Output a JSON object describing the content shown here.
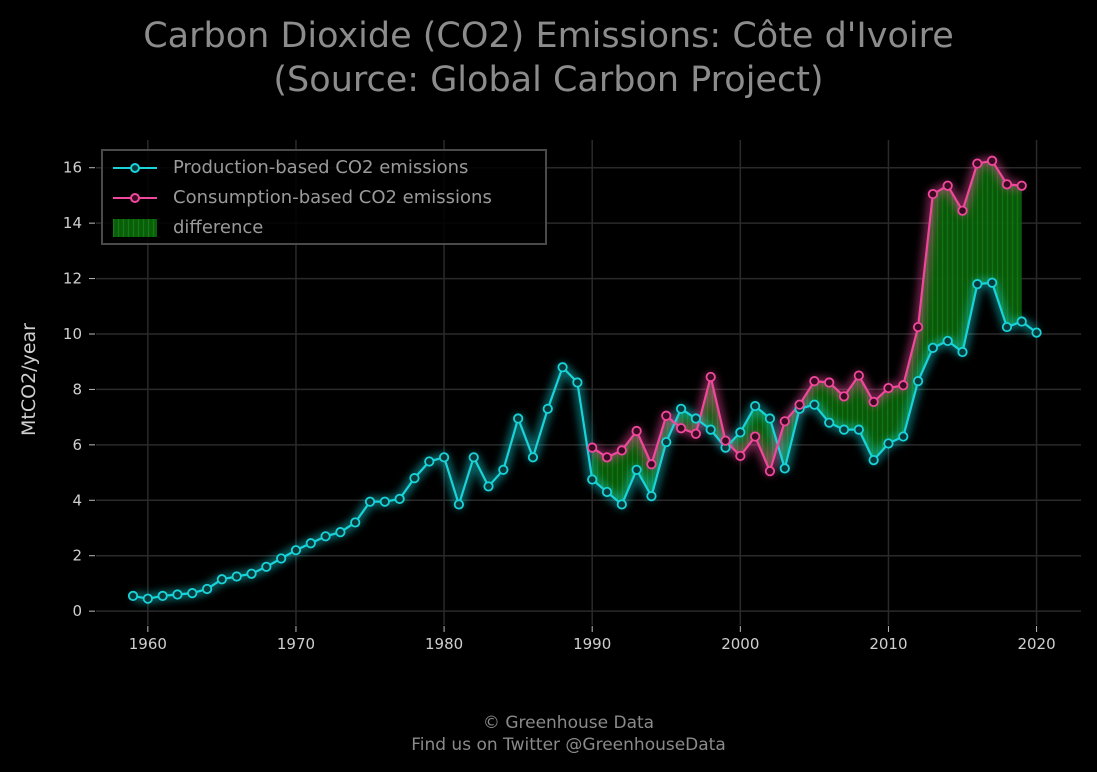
{
  "title_lines": [
    "Carbon Dioxide (CO2) Emissions: Côte d'Ivoire",
    "(Source: Global Carbon Project)"
  ],
  "footer": {
    "line1": "© Greenhouse Data",
    "line2": "Find us on Twitter @GreenhouseData"
  },
  "chart_data": {
    "type": "line",
    "title": "Carbon Dioxide (CO2) Emissions: Côte d'Ivoire (Source: Global Carbon Project)",
    "xlabel": "",
    "ylabel": "MtCO2/year",
    "xlim": [
      1956.5,
      2023
    ],
    "ylim": [
      -0.5,
      17
    ],
    "xticks": [
      1960,
      1970,
      1980,
      1990,
      2000,
      2010,
      2020
    ],
    "yticks": [
      0,
      2,
      4,
      6,
      8,
      10,
      12,
      14,
      16
    ],
    "grid": true,
    "legend_position": "top-left",
    "colors": {
      "production": "#19d3d8",
      "consumption": "#f0489c",
      "difference": "#0b6b0b",
      "grid": "#2a2a2a",
      "text": "#cfcfcf"
    },
    "series": [
      {
        "name": "Production-based CO2 emissions",
        "x": [
          1959,
          1960,
          1961,
          1962,
          1963,
          1964,
          1965,
          1966,
          1967,
          1968,
          1969,
          1970,
          1971,
          1972,
          1973,
          1974,
          1975,
          1976,
          1977,
          1978,
          1979,
          1980,
          1981,
          1982,
          1983,
          1984,
          1985,
          1986,
          1987,
          1988,
          1989,
          1990,
          1991,
          1992,
          1993,
          1994,
          1995,
          1996,
          1997,
          1998,
          1999,
          2000,
          2001,
          2002,
          2003,
          2004,
          2005,
          2006,
          2007,
          2008,
          2009,
          2010,
          2011,
          2012,
          2013,
          2014,
          2015,
          2016,
          2017,
          2018,
          2019,
          2020
        ],
        "values": [
          0.55,
          0.45,
          0.55,
          0.6,
          0.65,
          0.8,
          1.15,
          1.25,
          1.35,
          1.6,
          1.9,
          2.2,
          2.45,
          2.7,
          2.85,
          3.2,
          3.95,
          3.95,
          4.05,
          4.8,
          5.4,
          5.55,
          3.85,
          5.55,
          4.5,
          5.1,
          6.95,
          5.55,
          7.3,
          8.8,
          8.25,
          4.75,
          4.3,
          3.85,
          5.1,
          4.15,
          6.1,
          7.3,
          6.95,
          6.55,
          5.9,
          6.45,
          7.4,
          6.95,
          5.15,
          7.3,
          7.45,
          6.8,
          6.55,
          6.55,
          5.45,
          6.05,
          6.3,
          8.3,
          9.5,
          9.75,
          9.35,
          11.8,
          11.85,
          10.25,
          10.45,
          10.05
        ]
      },
      {
        "name": "Consumption-based CO2 emissions",
        "x": [
          1990,
          1991,
          1992,
          1993,
          1994,
          1995,
          1996,
          1997,
          1998,
          1999,
          2000,
          2001,
          2002,
          2003,
          2004,
          2005,
          2006,
          2007,
          2008,
          2009,
          2010,
          2011,
          2012,
          2013,
          2014,
          2015,
          2016,
          2017,
          2018,
          2019
        ],
        "values": [
          5.9,
          5.55,
          5.8,
          6.5,
          5.3,
          7.05,
          6.6,
          6.4,
          8.45,
          6.15,
          5.6,
          6.3,
          5.05,
          6.85,
          7.45,
          8.3,
          8.25,
          7.75,
          8.5,
          7.55,
          8.05,
          8.15,
          10.25,
          15.05,
          15.35,
          14.45,
          16.15,
          16.25,
          15.4,
          15.35
        ]
      }
    ],
    "difference_label": "difference"
  }
}
